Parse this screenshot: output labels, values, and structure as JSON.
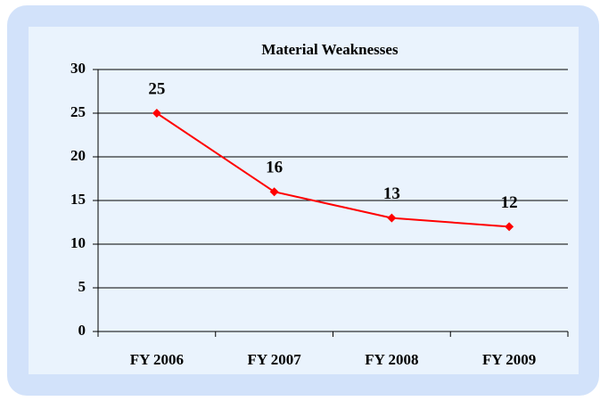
{
  "chart_data": {
    "type": "line",
    "title": "Material Weaknesses",
    "categories": [
      "FY 2006",
      "FY 2007",
      "FY 2008",
      "FY 2009"
    ],
    "series": [
      {
        "name": "Material Weaknesses",
        "color": "#ff0000",
        "values": [
          25,
          16,
          13,
          12
        ]
      }
    ],
    "ylim": [
      0,
      30
    ],
    "yticks": [
      0,
      5,
      10,
      15,
      20,
      25,
      30
    ],
    "grid": true
  }
}
